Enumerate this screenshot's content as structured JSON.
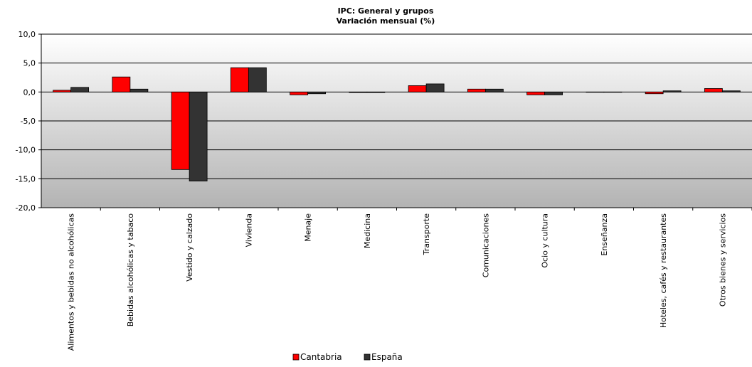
{
  "chart_data": {
    "type": "bar",
    "title": "IPC: General  y grupos",
    "subtitle": "Variación  mensual  (%)",
    "xlabel": "",
    "ylabel": "",
    "ylim": [
      -20,
      10
    ],
    "yticks": [
      10,
      5,
      0,
      -5,
      -10,
      -15,
      -20
    ],
    "ytick_labels": [
      "10,0",
      "5,0",
      "0,0",
      "-5,0",
      "-10,0",
      "-15,0",
      "-20,0"
    ],
    "grid": true,
    "legend_position": "bottom-center",
    "categories": [
      "Alimentos y bebidas no alcohólicas",
      "Bebidas alcohólicas y tabaco",
      "Vestido y calzado",
      "Vivienda",
      "Menaje",
      "Medicina",
      "Transporte",
      "Comunicaciones",
      "Ocio y cultura",
      "Enseñanza",
      "Hoteles, cafés y restaurantes",
      "Otros bienes y servicios"
    ],
    "series": [
      {
        "name": "Cantabria",
        "color": "#ff0000",
        "values": [
          0.3,
          2.6,
          -13.4,
          4.2,
          -0.5,
          -0.1,
          1.1,
          0.5,
          -0.5,
          0.0,
          -0.3,
          0.6
        ]
      },
      {
        "name": "España",
        "color": "#333333",
        "values": [
          0.8,
          0.5,
          -15.4,
          4.2,
          -0.3,
          -0.1,
          1.4,
          0.5,
          -0.5,
          0.0,
          0.2,
          0.2
        ]
      }
    ]
  }
}
